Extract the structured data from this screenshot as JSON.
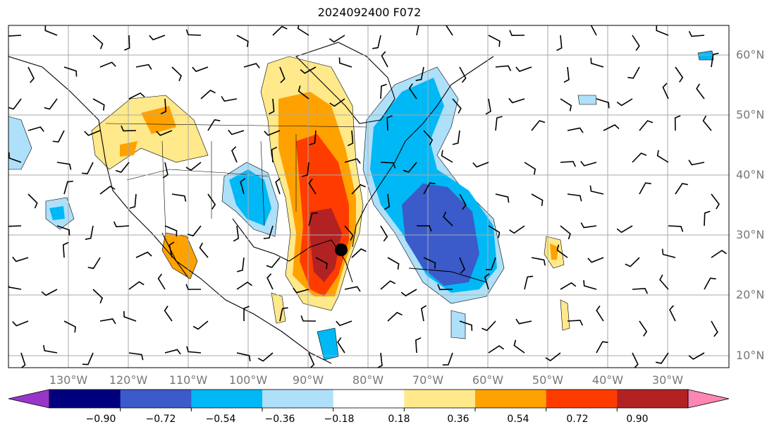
{
  "title": "2024092400 F072",
  "lat_labels": [
    "60°N",
    "50°N",
    "40°N",
    "30°N",
    "20°N",
    "10°N"
  ],
  "lon_labels": [
    "130°W",
    "120°W",
    "110°W",
    "100°W",
    "90°W",
    "80°W",
    "70°W",
    "60°W",
    "50°W",
    "40°W",
    "30°W"
  ],
  "colorbar": {
    "ticks": [
      "−0.90",
      "−0.72",
      "−0.54",
      "−0.36",
      "−0.18",
      "0.18",
      "0.36",
      "0.54",
      "0.72",
      "0.90"
    ],
    "colors": [
      "#9a35c9",
      "#00007f",
      "#3a5bc9",
      "#00b8f5",
      "#aee0fa",
      "#ffffff",
      "#ffe98a",
      "#ffa200",
      "#ff3c00",
      "#b22222",
      "#ff86b2"
    ]
  },
  "colors": {
    "grid": "#aaaaaa",
    "coast": "#000000",
    "label_gray": "#777777"
  },
  "marker": "storm-center-dot"
}
